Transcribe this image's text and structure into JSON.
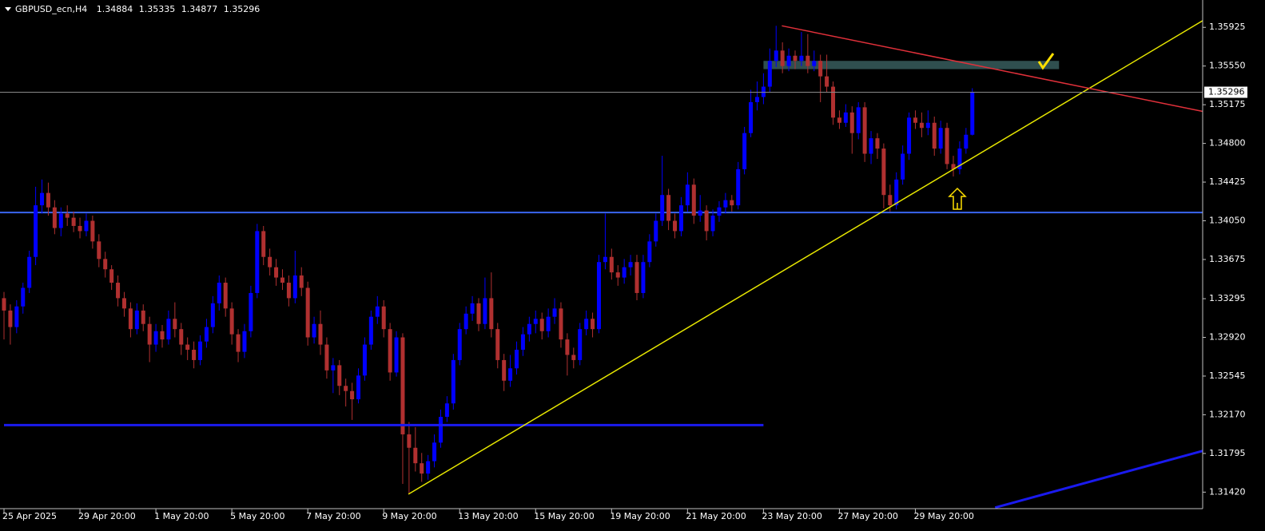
{
  "chart_data": {
    "type": "candlestick",
    "title": "GBPUSD_ecn,H4",
    "categories": [
      "25 Apr 2025",
      null,
      null,
      null,
      null,
      null,
      null,
      null,
      null,
      null,
      null,
      null,
      "29 Apr 20:00",
      null,
      null,
      null,
      null,
      null,
      null,
      null,
      null,
      null,
      null,
      null,
      "1 May 20:00",
      null,
      null,
      null,
      null,
      null,
      null,
      null,
      null,
      null,
      null,
      null,
      "5 May 20:00",
      null,
      null,
      null,
      null,
      null,
      null,
      null,
      null,
      null,
      null,
      null,
      "7 May 20:00",
      null,
      null,
      null,
      null,
      null,
      null,
      null,
      null,
      null,
      null,
      null,
      "9 May 20:00",
      null,
      null,
      null,
      null,
      null,
      null,
      null,
      null,
      null,
      null,
      null,
      "13 May 20:00",
      null,
      null,
      null,
      null,
      null,
      null,
      null,
      null,
      null,
      null,
      null,
      "15 May 20:00",
      null,
      null,
      null,
      null,
      null,
      null,
      null,
      null,
      null,
      null,
      null,
      "19 May 20:00",
      null,
      null,
      null,
      null,
      null,
      null,
      null,
      null,
      null,
      null,
      null,
      "21 May 20:00",
      null,
      null,
      null,
      null,
      null,
      null,
      null,
      null,
      null,
      null,
      null,
      "23 May 20:00",
      null,
      null,
      null,
      null,
      null,
      null,
      null,
      null,
      null,
      null,
      null,
      "27 May 20:00",
      null,
      null,
      null,
      null,
      null,
      null,
      null,
      null,
      null,
      null,
      null,
      "29 May 20:00",
      null,
      null,
      null,
      null,
      null,
      null,
      null,
      null,
      null
    ],
    "open": [
      1.333,
      1.3318,
      1.3302,
      1.3322,
      1.334,
      1.337,
      1.342,
      1.3432,
      1.3418,
      1.3398,
      1.3412,
      1.3408,
      1.34,
      1.3395,
      1.3405,
      1.3385,
      1.3368,
      1.3358,
      1.3345,
      1.333,
      1.332,
      1.33,
      1.3318,
      1.3305,
      1.3285,
      1.3298,
      1.329,
      1.331,
      1.33,
      1.3285,
      1.328,
      1.327,
      1.3288,
      1.3302,
      1.3325,
      1.3345,
      1.332,
      1.3295,
      1.3278,
      1.3298,
      1.3335,
      1.3395,
      1.337,
      1.336,
      1.335,
      1.3345,
      1.333,
      1.3352,
      1.334,
      1.3292,
      1.3305,
      1.3285,
      1.326,
      1.3265,
      1.3245,
      1.324,
      1.3232,
      1.3255,
      1.3285,
      1.3312,
      1.3322,
      1.33,
      1.3258,
      1.3292,
      1.3198,
      1.3185,
      1.317,
      1.316,
      1.3172,
      1.319,
      1.3215,
      1.3228,
      1.327,
      1.33,
      1.3315,
      1.3325,
      1.3305,
      1.333,
      1.33,
      1.327,
      1.325,
      1.3262,
      1.328,
      1.3295,
      1.3305,
      1.331,
      1.3298,
      1.3312,
      1.332,
      1.329,
      1.3275,
      1.327,
      1.33,
      1.331,
      1.33,
      1.3365,
      1.337,
      1.3355,
      1.335,
      1.336,
      1.3365,
      1.3335,
      1.3365,
      1.3385,
      1.3405,
      1.343,
      1.3405,
      1.3395,
      1.342,
      1.344,
      1.341,
      1.3415,
      1.3395,
      1.341,
      1.3418,
      1.3425,
      1.342,
      1.3455,
      1.349,
      1.352,
      1.3525,
      1.3535,
      1.356,
      1.357,
      1.3555,
      1.3565,
      1.356,
      1.3565,
      1.3555,
      1.356,
      1.3545,
      1.3535,
      1.3505,
      1.35,
      1.351,
      1.349,
      1.3515,
      1.347,
      1.3485,
      1.3475,
      1.343,
      1.342,
      1.3445,
      1.347,
      1.3505,
      1.35,
      1.3495,
      1.35,
      1.3475,
      1.3495,
      1.346,
      1.3455,
      1.3475,
      1.34884
    ],
    "high": [
      1.3336,
      1.3324,
      1.3328,
      1.3345,
      1.3376,
      1.3438,
      1.3445,
      1.3442,
      1.3425,
      1.3418,
      1.342,
      1.3414,
      1.3408,
      1.3412,
      1.341,
      1.3392,
      1.3375,
      1.3362,
      1.3352,
      1.3336,
      1.3326,
      1.3325,
      1.3324,
      1.3312,
      1.3305,
      1.3304,
      1.3318,
      1.3326,
      1.3306,
      1.3292,
      1.3288,
      1.3294,
      1.331,
      1.3332,
      1.3352,
      1.335,
      1.3326,
      1.33,
      1.3305,
      1.3342,
      1.3402,
      1.34,
      1.3378,
      1.3368,
      1.3358,
      1.3352,
      1.3376,
      1.336,
      1.3346,
      1.3312,
      1.3318,
      1.3292,
      1.3272,
      1.327,
      1.3252,
      1.3248,
      1.3262,
      1.3292,
      1.3318,
      1.3332,
      1.3328,
      1.3306,
      1.3298,
      1.3296,
      1.321,
      1.3205,
      1.318,
      1.3178,
      1.3198,
      1.3222,
      1.3235,
      1.3276,
      1.3306,
      1.3322,
      1.3332,
      1.333,
      1.335,
      1.3355,
      1.3306,
      1.3276,
      1.3275,
      1.3288,
      1.3302,
      1.3312,
      1.3318,
      1.3316,
      1.332,
      1.333,
      1.3326,
      1.3296,
      1.3282,
      1.3306,
      1.3318,
      1.3316,
      1.3372,
      1.3412,
      1.3378,
      1.3362,
      1.3368,
      1.3372,
      1.3372,
      1.3372,
      1.3392,
      1.3412,
      1.3468,
      1.3436,
      1.3412,
      1.3428,
      1.3452,
      1.3446,
      1.343,
      1.342,
      1.3416,
      1.3424,
      1.3432,
      1.343,
      1.3462,
      1.3496,
      1.3532,
      1.354,
      1.3548,
      1.3572,
      1.3594,
      1.3578,
      1.3572,
      1.357,
      1.3588,
      1.3586,
      1.357,
      1.3566,
      1.3566,
      1.354,
      1.3512,
      1.3518,
      1.3516,
      1.352,
      1.352,
      1.3492,
      1.349,
      1.348,
      1.344,
      1.3452,
      1.3478,
      1.351,
      1.3512,
      1.351,
      1.3512,
      1.3506,
      1.3502,
      1.35,
      1.3468,
      1.3482,
      1.3495,
      1.35335
    ],
    "low": [
      1.329,
      1.3285,
      1.3296,
      1.3315,
      1.3335,
      1.3362,
      1.3412,
      1.341,
      1.3392,
      1.339,
      1.34,
      1.3394,
      1.3388,
      1.339,
      1.3378,
      1.336,
      1.335,
      1.3338,
      1.3322,
      1.3312,
      1.3292,
      1.3295,
      1.3298,
      1.3268,
      1.3278,
      1.3282,
      1.3285,
      1.3292,
      1.3275,
      1.327,
      1.3262,
      1.3265,
      1.3282,
      1.3296,
      1.3318,
      1.3312,
      1.3285,
      1.3268,
      1.3272,
      1.3292,
      1.333,
      1.3362,
      1.3352,
      1.3342,
      1.3338,
      1.3322,
      1.3325,
      1.3332,
      1.3284,
      1.3286,
      1.3275,
      1.3252,
      1.3238,
      1.3236,
      1.3225,
      1.3212,
      1.3228,
      1.325,
      1.328,
      1.3305,
      1.3292,
      1.325,
      1.3254,
      1.315,
      1.314,
      1.3162,
      1.3152,
      1.3154,
      1.3166,
      1.3185,
      1.321,
      1.3222,
      1.3265,
      1.3295,
      1.3308,
      1.3298,
      1.33,
      1.3292,
      1.3262,
      1.324,
      1.3244,
      1.3256,
      1.3274,
      1.3288,
      1.3296,
      1.329,
      1.3292,
      1.3305,
      1.3282,
      1.3255,
      1.3262,
      1.3265,
      1.3294,
      1.3292,
      1.3296,
      1.3358,
      1.3348,
      1.3342,
      1.3344,
      1.3352,
      1.3328,
      1.333,
      1.336,
      1.338,
      1.34,
      1.3396,
      1.3388,
      1.339,
      1.3414,
      1.3402,
      1.3404,
      1.3386,
      1.339,
      1.3404,
      1.3412,
      1.3414,
      1.3416,
      1.345,
      1.3486,
      1.3512,
      1.3518,
      1.353,
      1.3554,
      1.3548,
      1.355,
      1.3552,
      1.3555,
      1.3548,
      1.355,
      1.352,
      1.353,
      1.3498,
      1.3494,
      1.3496,
      1.347,
      1.3484,
      1.3462,
      1.346,
      1.3465,
      1.3417,
      1.3414,
      1.3416,
      1.344,
      1.3464,
      1.3494,
      1.3486,
      1.3488,
      1.3468,
      1.347,
      1.3455,
      1.3448,
      1.345,
      1.347,
      1.34877
    ],
    "close": [
      1.3318,
      1.3302,
      1.3322,
      1.334,
      1.337,
      1.342,
      1.3432,
      1.3418,
      1.3398,
      1.3412,
      1.3408,
      1.34,
      1.3395,
      1.3405,
      1.3385,
      1.3368,
      1.3358,
      1.3345,
      1.333,
      1.332,
      1.33,
      1.3318,
      1.3305,
      1.3285,
      1.3298,
      1.329,
      1.331,
      1.33,
      1.3285,
      1.328,
      1.327,
      1.3288,
      1.3302,
      1.3325,
      1.3345,
      1.332,
      1.3295,
      1.3278,
      1.3298,
      1.3335,
      1.3395,
      1.337,
      1.336,
      1.335,
      1.3345,
      1.333,
      1.3352,
      1.334,
      1.3292,
      1.3305,
      1.3285,
      1.326,
      1.3265,
      1.3245,
      1.324,
      1.3232,
      1.3255,
      1.3285,
      1.3312,
      1.3322,
      1.33,
      1.3258,
      1.3292,
      1.3198,
      1.3185,
      1.317,
      1.316,
      1.3172,
      1.319,
      1.3215,
      1.3228,
      1.327,
      1.33,
      1.3315,
      1.3325,
      1.3305,
      1.333,
      1.33,
      1.327,
      1.325,
      1.3262,
      1.328,
      1.3295,
      1.3305,
      1.331,
      1.3298,
      1.3312,
      1.332,
      1.329,
      1.3275,
      1.327,
      1.33,
      1.331,
      1.33,
      1.3365,
      1.337,
      1.3355,
      1.335,
      1.336,
      1.3365,
      1.3335,
      1.3365,
      1.3385,
      1.3405,
      1.343,
      1.3405,
      1.3395,
      1.342,
      1.344,
      1.341,
      1.3415,
      1.3395,
      1.341,
      1.3418,
      1.3425,
      1.342,
      1.3455,
      1.349,
      1.352,
      1.3525,
      1.3535,
      1.356,
      1.357,
      1.3555,
      1.3565,
      1.356,
      1.3565,
      1.3555,
      1.356,
      1.3545,
      1.3535,
      1.3505,
      1.35,
      1.351,
      1.349,
      1.3515,
      1.347,
      1.3485,
      1.3475,
      1.343,
      1.342,
      1.3445,
      1.347,
      1.3505,
      1.35,
      1.3495,
      1.35,
      1.3475,
      1.3495,
      1.346,
      1.3455,
      1.3475,
      1.34884,
      1.35296
    ],
    "bull_color": "#0000ff",
    "bear_color": "#b03030",
    "ylim": [
      1.3126,
      1.3619
    ],
    "yticks": [
      {
        "value": 1.35925,
        "label": "1.35925"
      },
      {
        "value": 1.3555,
        "label": "1.35550"
      },
      {
        "value": 1.35175,
        "label": "1.35175"
      },
      {
        "value": 1.348,
        "label": "1.34800"
      },
      {
        "value": 1.34425,
        "label": "1.34425"
      },
      {
        "value": 1.3405,
        "label": "1.34050"
      },
      {
        "value": 1.33675,
        "label": "1.33675"
      },
      {
        "value": 1.33295,
        "label": "1.33295"
      },
      {
        "value": 1.3292,
        "label": "1.32920"
      },
      {
        "value": 1.32545,
        "label": "1.32545"
      },
      {
        "value": 1.3217,
        "label": "1.32170"
      },
      {
        "value": 1.31795,
        "label": "1.31795"
      },
      {
        "value": 1.3142,
        "label": "1.31420"
      }
    ],
    "grid": false,
    "price_line_color": "#8a8a8a",
    "hlines": [
      {
        "value": 1.3413,
        "color": "#3a66f0"
      }
    ],
    "segments": [
      {
        "x": [
          0,
          120
        ],
        "y": [
          1.3207,
          1.3207
        ],
        "color": "#1a1aee"
      },
      {
        "x": [
          63.9,
          189.4
        ],
        "y": [
          1.314,
          1.3599
        ],
        "color": "#e6e600"
      },
      {
        "x": [
          122.9,
          189.4
        ],
        "y": [
          1.3594,
          1.3511
        ],
        "color": "#e0303a"
      },
      {
        "x": [
          156.6,
          189.4
        ],
        "y": [
          1.3127,
          1.3182
        ],
        "color": "#1a1aee"
      }
    ],
    "zones": [
      {
        "x": [
          120,
          166.7
        ],
        "y": [
          1.3552,
          1.356
        ],
        "color": "#2f4f4f"
      }
    ]
  }
}
